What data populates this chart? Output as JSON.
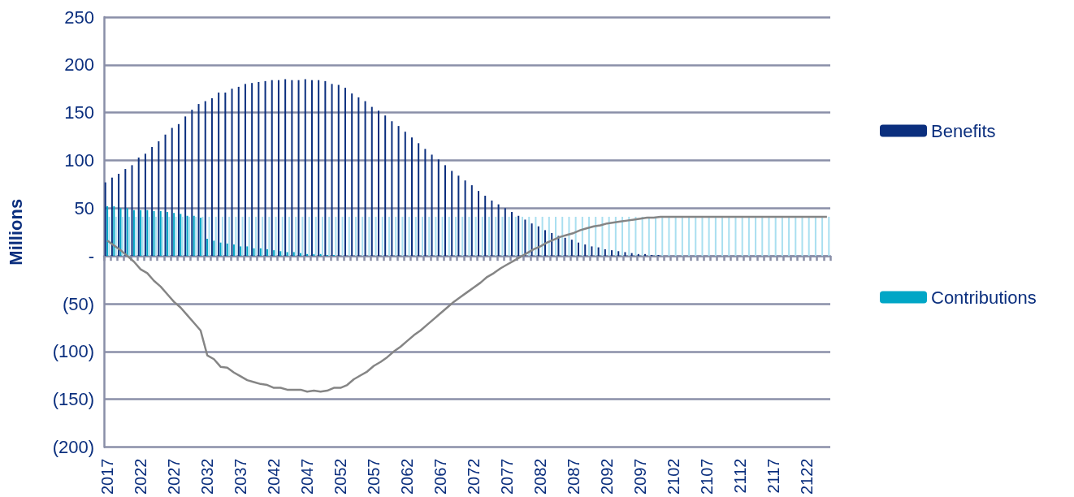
{
  "chart_data": {
    "type": "bar",
    "ylabel": "Millions",
    "categories": [
      "2017",
      null,
      null,
      null,
      null,
      "2022",
      null,
      null,
      null,
      null,
      "2027",
      null,
      null,
      null,
      null,
      "2032",
      null,
      null,
      null,
      null,
      "2037",
      null,
      null,
      null,
      null,
      "2042",
      null,
      null,
      null,
      null,
      "2047",
      null,
      null,
      null,
      null,
      "2052",
      null,
      null,
      null,
      null,
      "2057",
      null,
      null,
      null,
      null,
      "2062",
      null,
      null,
      null,
      null,
      "2067",
      null,
      null,
      null,
      null,
      "2072",
      null,
      null,
      null,
      null,
      "2077",
      null,
      null,
      null,
      null,
      "2082",
      null,
      null,
      null,
      null,
      "2087",
      null,
      null,
      null,
      null,
      "2092",
      null,
      null,
      null,
      null,
      "2097",
      null,
      null,
      null,
      null,
      "2102",
      null,
      null,
      null,
      null,
      "2107",
      null,
      null,
      null,
      null,
      "2112",
      null,
      null,
      null,
      null,
      "2117",
      null,
      null,
      null,
      null,
      "2122",
      null,
      null,
      null
    ],
    "series": [
      {
        "name": "Benefits",
        "color": "#0b2f7e",
        "values": [
          77,
          82,
          86,
          91,
          95,
          103,
          107,
          114,
          120,
          127,
          134,
          138,
          146,
          153,
          159,
          162,
          165,
          171,
          171,
          175,
          177,
          180,
          181,
          182,
          183,
          184,
          184,
          185,
          184,
          184,
          185,
          184,
          184,
          183,
          180,
          179,
          176,
          170,
          166,
          162,
          156,
          152,
          147,
          141,
          136,
          130,
          124,
          118,
          112,
          106,
          101,
          95,
          89,
          84,
          79,
          74,
          68,
          63,
          58,
          54,
          50,
          46,
          42,
          38,
          34,
          31,
          27,
          24,
          21,
          19,
          17,
          14,
          12,
          10,
          9,
          7,
          6,
          5,
          4,
          3,
          2,
          2,
          1,
          1,
          0,
          0,
          0,
          0,
          0,
          0,
          0,
          0,
          0,
          0,
          0,
          0,
          0,
          0,
          0,
          0,
          0,
          0,
          0,
          0,
          0,
          0,
          0,
          0,
          0
        ]
      },
      {
        "name": "Contributions",
        "color": "#00a6c6",
        "values": [
          52,
          52,
          50,
          50,
          48,
          48,
          48,
          47,
          47,
          46,
          45,
          44,
          42,
          42,
          40,
          18,
          16,
          14,
          13,
          12,
          10,
          10,
          8,
          8,
          7,
          6,
          5,
          4,
          4,
          3,
          2,
          2,
          2,
          1,
          1,
          0,
          0,
          0,
          0,
          0,
          0,
          0,
          0,
          0,
          0,
          0,
          0,
          0,
          0,
          0,
          0,
          0,
          0,
          0,
          0,
          0,
          0,
          0,
          0,
          0,
          0,
          0,
          0,
          0,
          0,
          0,
          0,
          0,
          0,
          0,
          0,
          0,
          0,
          0,
          0,
          0,
          0,
          0,
          0,
          0,
          0,
          0,
          0,
          0,
          0,
          0,
          0,
          0,
          0,
          0,
          0,
          0,
          0,
          0,
          0,
          0,
          0,
          0,
          0,
          0,
          0,
          0,
          0,
          0,
          0,
          0,
          0,
          0,
          0
        ]
      },
      {
        "color": "#a9dff0",
        "values": [
          41,
          41,
          41,
          41,
          41,
          41,
          41,
          41,
          41,
          41,
          41,
          41,
          41,
          41,
          41,
          41,
          41,
          41,
          41,
          41,
          41,
          41,
          41,
          41,
          41,
          41,
          41,
          41,
          41,
          41,
          41,
          41,
          41,
          41,
          41,
          41,
          41,
          41,
          41,
          41,
          41,
          41,
          41,
          41,
          41,
          41,
          41,
          41,
          41,
          41,
          41,
          41,
          41,
          41,
          41,
          41,
          41,
          41,
          41,
          41,
          41,
          41,
          41,
          41,
          41,
          41,
          41,
          41,
          41,
          41,
          41,
          41,
          41,
          41,
          41,
          41,
          41,
          41,
          41,
          41,
          41,
          41,
          41,
          41,
          41,
          41,
          41,
          41,
          41,
          41,
          41,
          41,
          41,
          41,
          41,
          41,
          41,
          41,
          41,
          41,
          41,
          41,
          41,
          41,
          41,
          41,
          41,
          41,
          41
        ]
      },
      {
        "type": "line",
        "color": "#858585",
        "values": [
          16,
          11,
          6,
          0,
          -6,
          -14,
          -18,
          -26,
          -32,
          -40,
          -48,
          -54,
          -62,
          -70,
          -78,
          -104,
          -108,
          -116,
          -117,
          -122,
          -126,
          -130,
          -132,
          -134,
          -135,
          -138,
          -138,
          -140,
          -140,
          -140,
          -142,
          -141,
          -142,
          -141,
          -138,
          -138,
          -135,
          -129,
          -125,
          -121,
          -115,
          -111,
          -106,
          -100,
          -95,
          -89,
          -83,
          -78,
          -72,
          -66,
          -60,
          -54,
          -48,
          -43,
          -38,
          -33,
          -28,
          -22,
          -18,
          -13,
          -9,
          -5,
          -1,
          3,
          7,
          10,
          14,
          17,
          20,
          22,
          24,
          27,
          29,
          31,
          32,
          34,
          35,
          36,
          37,
          38,
          39,
          40,
          40,
          41,
          41,
          41,
          41,
          41,
          41,
          41,
          41,
          41,
          41,
          41,
          41,
          41,
          41,
          41,
          41,
          41,
          41,
          41,
          41,
          41,
          41,
          41,
          41,
          41,
          41
        ]
      }
    ],
    "ylim": [
      -200,
      250
    ],
    "yticks": [
      {
        "value": -200,
        "label": "(200)"
      },
      {
        "value": -150,
        "label": "(150)"
      },
      {
        "value": -100,
        "label": "(100)"
      },
      {
        "value": -50,
        "label": "(50)"
      },
      {
        "value": 0,
        "label": "-"
      },
      50,
      100,
      150,
      200,
      250
    ],
    "grid": "y",
    "legend": "right",
    "marker": "none"
  }
}
